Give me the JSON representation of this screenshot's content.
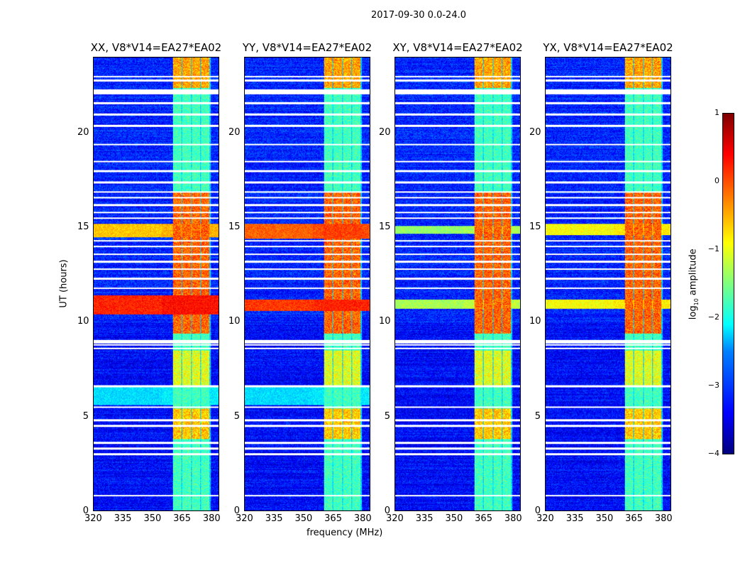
{
  "suptitle": "2017-09-30 0.0-24.0",
  "chart_data": {
    "type": "heatmap",
    "xlabel": "frequency (MHz)",
    "ylabel": "UT (hours)",
    "xlim": [
      320,
      384
    ],
    "ylim": [
      0,
      24
    ],
    "xticks": [
      "320",
      "335",
      "350",
      "365",
      "380"
    ],
    "yticks": [
      "0",
      "5",
      "10",
      "15",
      "20"
    ],
    "colorbar": {
      "label": "log10 amplitude",
      "label_main": "log",
      "label_sub": "10",
      "label_tail": " amplitude",
      "range": [
        -4,
        1
      ],
      "ticks": [
        "1",
        "0",
        "−1",
        "−2",
        "−3",
        "−4"
      ],
      "colormap": "jet"
    },
    "panels": [
      {
        "title": "XX, V8*V14=EA27*EA02",
        "background": -3.2,
        "broadband_bands": [
          {
            "hours": [
              10.4,
              11.4
            ],
            "value": 0.3
          },
          {
            "hours": [
              14.5,
              15.2
            ],
            "value": -0.5
          },
          {
            "hours": [
              5.6,
              6.6
            ],
            "value": -2.2
          }
        ]
      },
      {
        "title": "YY, V8*V14=EA27*EA02",
        "background": -3.2,
        "broadband_bands": [
          {
            "hours": [
              10.6,
              11.2
            ],
            "value": 0.2
          },
          {
            "hours": [
              14.4,
              15.2
            ],
            "value": 0.0
          },
          {
            "hours": [
              5.6,
              6.6
            ],
            "value": -2.2
          }
        ]
      },
      {
        "title": "XY, V8*V14=EA27*EA02",
        "background": -3.2,
        "broadband_bands": [
          {
            "hours": [
              10.7,
              11.2
            ],
            "value": -1.2
          },
          {
            "hours": [
              14.7,
              15.1
            ],
            "value": -1.3
          }
        ]
      },
      {
        "title": "YX, V8*V14=EA27*EA02",
        "background": -3.2,
        "broadband_bands": [
          {
            "hours": [
              10.7,
              11.2
            ],
            "value": -0.8
          },
          {
            "hours": [
              14.6,
              15.2
            ],
            "value": -0.8
          }
        ]
      }
    ],
    "rfi_band_mhz": [
      360.5,
      380
    ],
    "rfi_subbands_mhz": [
      [
        360.5,
        364.8
      ],
      [
        365.3,
        369.8
      ],
      [
        370.3,
        374.6
      ],
      [
        375.1,
        379.5
      ]
    ],
    "rfi_baseline": -2.0,
    "rfi_bursts": [
      {
        "hours": [
          3.8,
          5.4
        ],
        "value": -0.8
      },
      {
        "hours": [
          6.6,
          8.5
        ],
        "value": -1.2
      },
      {
        "hours": [
          9.4,
          16.9
        ],
        "value": -0.3
      },
      {
        "hours": [
          22.4,
          24
        ],
        "value": -0.6
      }
    ],
    "flagged_hours": [
      0.8,
      3.0,
      3.3,
      3.6,
      4.5,
      4.8,
      5.5,
      6.6,
      8.6,
      8.8,
      8.9,
      9.0,
      11.8,
      12.3,
      12.8,
      13.2,
      13.6,
      14.0,
      14.3,
      15.5,
      15.8,
      16.2,
      16.6,
      16.9,
      17.4,
      18.0,
      18.5,
      19.4,
      20.4,
      21.0,
      21.6,
      22.1,
      22.2,
      22.3,
      22.8,
      23.0
    ]
  }
}
